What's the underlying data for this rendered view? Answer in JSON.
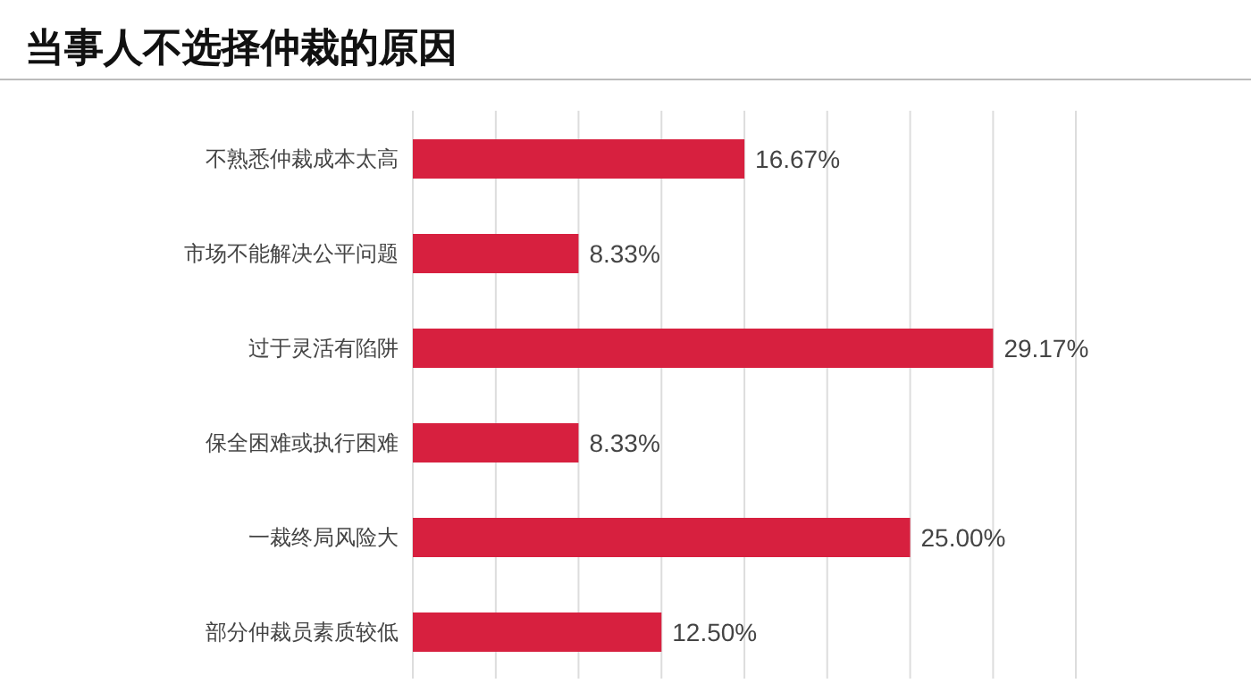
{
  "chart_data": {
    "type": "bar",
    "orientation": "horizontal",
    "title": "当事人不选择仲裁的原因",
    "categories": [
      "不熟悉仲裁成本太高",
      "市场不能解决公平问题",
      "过于灵活有陷阱",
      "保全困难或执行困难",
      "一裁终局风险大",
      "部分仲裁员素质较低"
    ],
    "values": [
      16.67,
      8.33,
      29.17,
      8.33,
      25.0,
      12.5
    ],
    "value_labels": [
      "16.67%",
      "8.33%",
      "29.17%",
      "8.33%",
      "25.00%",
      "12.50%"
    ],
    "color": "#d7203f",
    "xlim": [
      0,
      33.33
    ],
    "xticks": [
      {
        "value": 0,
        "label": null
      },
      {
        "value": 4.17,
        "label": null
      },
      {
        "value": 8.33,
        "label": null
      },
      {
        "value": 12.5,
        "label": null
      },
      {
        "value": 16.67,
        "label": null
      },
      {
        "value": 20.83,
        "label": null
      },
      {
        "value": 25,
        "label": null
      },
      {
        "value": 29.17,
        "label": null
      },
      {
        "value": 33.33,
        "label": null
      }
    ],
    "tick_labels": "y",
    "grid": "x",
    "legend": false
  }
}
